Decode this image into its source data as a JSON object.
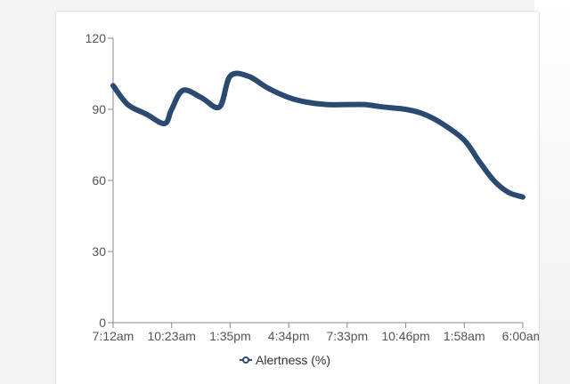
{
  "chart_data": {
    "type": "line",
    "title": "",
    "xlabel": "",
    "ylabel": "",
    "x_ticks": [
      "7:12am",
      "10:23am",
      "1:35pm",
      "4:34pm",
      "7:33pm",
      "10:46pm",
      "1:58am",
      "6:00am"
    ],
    "y_ticks": [
      0,
      30,
      60,
      90,
      120
    ],
    "ylim": [
      0,
      120
    ],
    "grid": false,
    "legend": "bottom",
    "series": [
      {
        "name": "Alertness (%)",
        "color": "#2b4a72",
        "x": [
          "7:12am",
          "8:00am",
          "9:00am",
          "10:00am",
          "10:23am",
          "11:00am",
          "12:00pm",
          "1:00pm",
          "1:35pm",
          "2:30pm",
          "3:30pm",
          "4:34pm",
          "5:30pm",
          "6:30pm",
          "7:33pm",
          "8:30pm",
          "9:30pm",
          "10:46pm",
          "11:45pm",
          "12:45am",
          "1:58am",
          "3:00am",
          "4:00am",
          "5:00am",
          "6:00am"
        ],
        "values": [
          100,
          92,
          88,
          84,
          90,
          98,
          95,
          91,
          104,
          104,
          99,
          95,
          93,
          92,
          92,
          92,
          91,
          90,
          88,
          84,
          77,
          68,
          60,
          55,
          53
        ]
      }
    ]
  }
}
